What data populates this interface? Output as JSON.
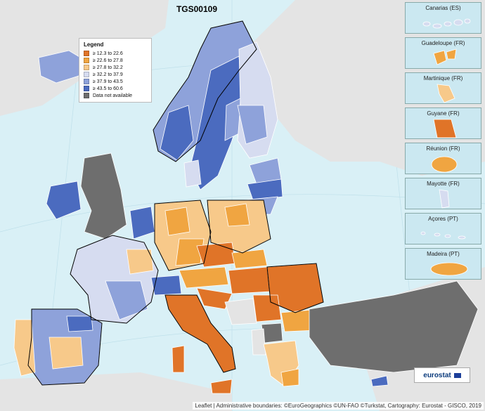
{
  "map": {
    "title": "TGS00109",
    "legend": {
      "title": "Legend",
      "items": [
        {
          "label": "≥ 12.3 to 22.6",
          "color": "#e07428"
        },
        {
          "label": "≥ 22.6 to 27.8",
          "color": "#f0a541"
        },
        {
          "label": "≥ 27.8 to 32.2",
          "color": "#f7c98a"
        },
        {
          "label": "≥ 32.2 to 37.9",
          "color": "#d6dcf0"
        },
        {
          "label": "≥ 37.9 to 43.5",
          "color": "#8ea2da"
        },
        {
          "label": "≥ 43.5 to 60.6",
          "color": "#4b6bbf"
        },
        {
          "label": "Data not available",
          "color": "#6e6e6e"
        }
      ]
    },
    "insets": [
      {
        "label": "Canarias (ES)",
        "color": "#d6dcf0"
      },
      {
        "label": "Guadeloupe (FR)",
        "color": "#f0a541"
      },
      {
        "label": "Martinique (FR)",
        "color": "#f7c98a"
      },
      {
        "label": "Guyane (FR)",
        "color": "#e07428"
      },
      {
        "label": "Réunion (FR)",
        "color": "#f0a541"
      },
      {
        "label": "Mayotte (FR)",
        "color": "#d6dcf0"
      },
      {
        "label": "Açores (PT)",
        "color": "#d6dcf0"
      },
      {
        "label": "Madeira (PT)",
        "color": "#f0a541"
      }
    ],
    "logo": "eurostat",
    "attribution": "Leaflet | Administrative boundaries: ©EuroGeographics ©UN-FAO ©Turkstat, Cartography: Eurostat - GISCO, 2019",
    "colors": {
      "sea": "#d9f0f6",
      "non_eu_land": "#e4e4e4",
      "no_data": "#6e6e6e"
    }
  }
}
